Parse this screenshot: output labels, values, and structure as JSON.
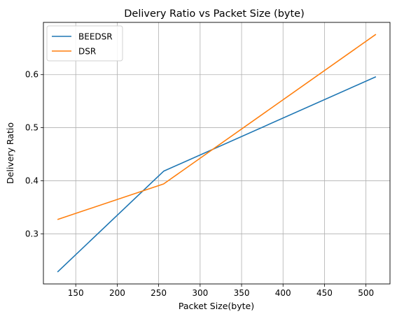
{
  "chart_data": {
    "type": "line",
    "title": "Delivery Ratio  vs Packet Size (byte)",
    "xlabel": "Packet Size(byte)",
    "ylabel": "Delivery Ratio",
    "xlim": [
      111,
      529
    ],
    "ylim": [
      0.2055,
      0.6985
    ],
    "xticks": [
      150,
      200,
      250,
      300,
      350,
      400,
      450,
      500
    ],
    "yticks": [
      0.3,
      0.4,
      0.5,
      0.6
    ],
    "ytick_labels": [
      "0.3",
      "0.4",
      "0.5",
      "0.6"
    ],
    "grid": true,
    "legend_position": "top-left",
    "x": [
      128,
      256,
      512
    ],
    "series": [
      {
        "name": "BEEDSR",
        "color": "#1f77b4",
        "values": [
          0.228,
          0.418,
          0.596
        ]
      },
      {
        "name": "DSR",
        "color": "#ff7f0e",
        "values": [
          0.327,
          0.394,
          0.676
        ]
      }
    ]
  }
}
